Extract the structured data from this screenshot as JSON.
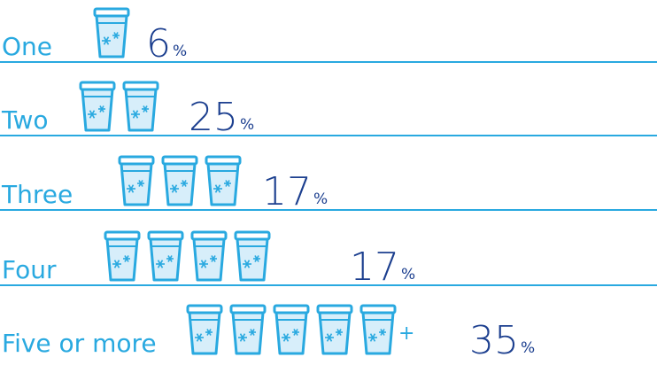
{
  "chart_data": {
    "type": "pictogram",
    "categories": [
      "One",
      "Two",
      "Three",
      "Four",
      "Five or more"
    ],
    "cups": [
      1,
      2,
      3,
      4,
      5
    ],
    "values": [
      6,
      25,
      17,
      17,
      35
    ],
    "unit": "%",
    "annotation": "+",
    "color": "#29a9e0",
    "value_color": "#1c3f8f"
  }
}
